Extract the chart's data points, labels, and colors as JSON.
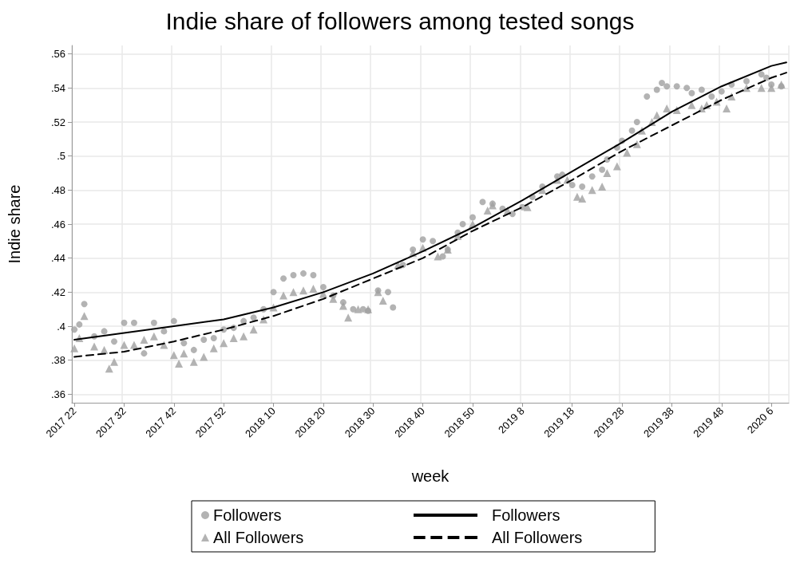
{
  "chart_data": {
    "type": "scatter",
    "title": "Indie share of followers among tested songs",
    "xlabel": "week",
    "ylabel": "Indie share",
    "categories": [
      "2017 22",
      null,
      null,
      null,
      null,
      null,
      null,
      null,
      null,
      null,
      "2017 32",
      null,
      null,
      null,
      null,
      null,
      null,
      null,
      null,
      null,
      "2017 42",
      null,
      null,
      null,
      null,
      null,
      null,
      null,
      null,
      null,
      "2017 52",
      null,
      null,
      null,
      null,
      null,
      null,
      null,
      null,
      null,
      "2018 10",
      null,
      null,
      null,
      null,
      null,
      null,
      null,
      null,
      null,
      "2018 20",
      null,
      null,
      null,
      null,
      null,
      null,
      null,
      null,
      null,
      "2018 30",
      null,
      null,
      null,
      null,
      null,
      null,
      null,
      null,
      null,
      "2018 40",
      null,
      null,
      null,
      null,
      null,
      null,
      null,
      null,
      null,
      "2018 50",
      null,
      null,
      null,
      null,
      null,
      null,
      null,
      null,
      null,
      "2019 8",
      null,
      null,
      null,
      null,
      null,
      null,
      null,
      null,
      null,
      "2019 18",
      null,
      null,
      null,
      null,
      null,
      null,
      null,
      null,
      null,
      "2019 28",
      null,
      null,
      null,
      null,
      null,
      null,
      null,
      null,
      null,
      "2019 38",
      null,
      null,
      null,
      null,
      null,
      null,
      null,
      null,
      null,
      "2019 48",
      null,
      null,
      null,
      null,
      null,
      null,
      null,
      null,
      null,
      "2020 6",
      null,
      null,
      null
    ],
    "ylim": [
      0.355,
      0.565
    ],
    "yticks": [
      {
        "value": 0.36,
        "label": ".36"
      },
      {
        "value": 0.38,
        "label": ".38"
      },
      {
        "value": 0.4,
        "label": ".4"
      },
      {
        "value": 0.42,
        "label": ".42"
      },
      {
        "value": 0.44,
        "label": ".44"
      },
      {
        "value": 0.46,
        "label": ".46"
      },
      {
        "value": 0.48,
        "label": ".48"
      },
      {
        "value": 0.5,
        "label": ".5"
      },
      {
        "value": 0.52,
        "label": ".52"
      },
      {
        "value": 0.54,
        "label": ".54"
      },
      {
        "value": 0.56,
        "label": ".56"
      }
    ],
    "grid": true,
    "legend": "bottom",
    "series": [
      {
        "name": "Followers",
        "marker": "circle",
        "color": "#a0a0a0",
        "values": [
          0.398,
          0.401,
          0.413,
          null,
          0.394,
          null,
          0.397,
          null,
          0.391,
          null,
          0.402,
          null,
          0.402,
          null,
          0.384,
          null,
          0.402,
          null,
          0.397,
          null,
          0.403,
          null,
          0.39,
          null,
          0.386,
          null,
          0.392,
          null,
          0.393,
          null,
          0.398,
          null,
          0.399,
          null,
          0.403,
          null,
          0.405,
          null,
          0.41,
          null,
          0.42,
          null,
          0.428,
          null,
          0.43,
          null,
          0.431,
          null,
          0.43,
          null,
          0.423,
          null,
          0.418,
          null,
          0.414,
          null,
          0.41,
          null,
          0.41,
          0.409,
          null,
          0.421,
          null,
          0.42,
          0.411,
          null,
          0.436,
          null,
          0.445,
          null,
          0.451,
          null,
          0.45,
          null,
          0.441,
          0.445,
          null,
          0.455,
          0.46,
          null,
          0.464,
          null,
          0.473,
          null,
          0.472,
          null,
          0.469,
          null,
          0.466,
          null,
          0.47,
          null,
          0.476,
          null,
          0.482,
          null,
          null,
          0.488,
          0.489,
          null,
          0.483,
          null,
          0.482,
          null,
          0.488,
          null,
          0.492,
          0.498,
          null,
          0.505,
          0.509,
          null,
          0.515,
          0.52,
          null,
          0.535,
          null,
          0.539,
          0.543,
          0.541,
          null,
          0.541,
          null,
          0.54,
          0.537,
          null,
          0.539,
          null,
          0.535,
          null,
          0.538,
          null,
          0.542,
          null,
          null,
          0.544,
          null,
          null,
          0.548,
          0.546,
          0.542,
          null,
          0.541,
          null
        ]
      },
      {
        "name": "All Followers",
        "marker": "triangle",
        "color": "#a0a0a0",
        "values": [
          0.387,
          0.393,
          0.406,
          null,
          0.388,
          null,
          0.386,
          0.375,
          0.379,
          null,
          0.389,
          null,
          0.389,
          null,
          0.392,
          null,
          0.394,
          null,
          0.389,
          null,
          0.383,
          0.378,
          0.384,
          null,
          0.379,
          null,
          0.382,
          null,
          0.387,
          null,
          0.39,
          null,
          0.393,
          null,
          0.394,
          null,
          0.398,
          null,
          0.404,
          null,
          0.411,
          null,
          0.418,
          null,
          0.42,
          null,
          0.421,
          null,
          0.422,
          null,
          0.419,
          null,
          0.416,
          null,
          0.412,
          0.405,
          null,
          0.41,
          null,
          0.41,
          null,
          0.42,
          0.415,
          null,
          null,
          0.436,
          null,
          null,
          0.443,
          null,
          0.446,
          null,
          null,
          0.441,
          null,
          0.445,
          null,
          0.453,
          null,
          null,
          0.46,
          null,
          null,
          0.468,
          0.471,
          null,
          null,
          0.468,
          null,
          null,
          null,
          0.47,
          null,
          null,
          0.48,
          null,
          null,
          0.486,
          null,
          0.486,
          null,
          0.476,
          0.475,
          null,
          0.48,
          null,
          0.482,
          0.49,
          null,
          0.494,
          null,
          0.502,
          null,
          0.507,
          0.515,
          null,
          0.52,
          0.524,
          null,
          0.528,
          null,
          0.527,
          null,
          null,
          0.53,
          null,
          0.528,
          0.53,
          null,
          0.532,
          null,
          0.528,
          0.535,
          null,
          null,
          0.54,
          null,
          null,
          0.54,
          null,
          0.54,
          null,
          0.542,
          null
        ]
      },
      {
        "name": "Followers",
        "type": "line",
        "marker": "none",
        "line_style": "solid",
        "color": "#000000",
        "values": [
          0.392,
          null,
          null,
          null,
          null,
          null,
          null,
          null,
          null,
          null,
          0.396,
          null,
          null,
          null,
          null,
          null,
          null,
          null,
          null,
          null,
          0.4,
          null,
          null,
          null,
          null,
          null,
          null,
          null,
          null,
          null,
          0.404,
          null,
          null,
          null,
          null,
          null,
          null,
          null,
          null,
          null,
          0.411,
          null,
          null,
          null,
          null,
          null,
          null,
          null,
          null,
          null,
          0.42,
          null,
          null,
          null,
          null,
          null,
          null,
          null,
          null,
          null,
          0.431,
          null,
          null,
          null,
          null,
          null,
          null,
          null,
          null,
          null,
          0.444,
          null,
          null,
          null,
          null,
          null,
          null,
          null,
          null,
          null,
          0.458,
          null,
          null,
          null,
          null,
          null,
          null,
          null,
          null,
          null,
          0.474,
          null,
          null,
          null,
          null,
          null,
          null,
          null,
          null,
          null,
          0.491,
          null,
          null,
          null,
          null,
          null,
          null,
          null,
          null,
          null,
          0.508,
          null,
          null,
          null,
          null,
          null,
          null,
          null,
          null,
          null,
          0.526,
          null,
          null,
          null,
          null,
          null,
          null,
          null,
          null,
          null,
          0.541,
          null,
          null,
          null,
          null,
          null,
          null,
          null,
          null,
          null,
          0.553,
          null,
          null,
          0.555
        ]
      },
      {
        "name": "All Followers",
        "type": "line",
        "marker": "none",
        "line_style": "dashed",
        "color": "#000000",
        "values": [
          0.382,
          null,
          null,
          null,
          null,
          null,
          null,
          null,
          null,
          null,
          0.385,
          null,
          null,
          null,
          null,
          null,
          null,
          null,
          null,
          null,
          0.391,
          null,
          null,
          null,
          null,
          null,
          null,
          null,
          null,
          null,
          0.398,
          null,
          null,
          null,
          null,
          null,
          null,
          null,
          null,
          null,
          0.406,
          null,
          null,
          null,
          null,
          null,
          null,
          null,
          null,
          null,
          0.416,
          null,
          null,
          null,
          null,
          null,
          null,
          null,
          null,
          null,
          0.428,
          null,
          null,
          null,
          null,
          null,
          null,
          null,
          null,
          null,
          0.44,
          null,
          null,
          null,
          null,
          null,
          null,
          null,
          null,
          null,
          0.456,
          null,
          null,
          null,
          null,
          null,
          null,
          null,
          null,
          null,
          0.47,
          null,
          null,
          null,
          null,
          null,
          null,
          null,
          null,
          null,
          0.486,
          null,
          null,
          null,
          null,
          null,
          null,
          null,
          null,
          null,
          0.503,
          null,
          null,
          null,
          null,
          null,
          null,
          null,
          null,
          null,
          0.518,
          null,
          null,
          null,
          null,
          null,
          null,
          null,
          null,
          null,
          0.533,
          null,
          null,
          null,
          null,
          null,
          null,
          null,
          null,
          null,
          0.546,
          null,
          null,
          0.549
        ]
      }
    ]
  }
}
